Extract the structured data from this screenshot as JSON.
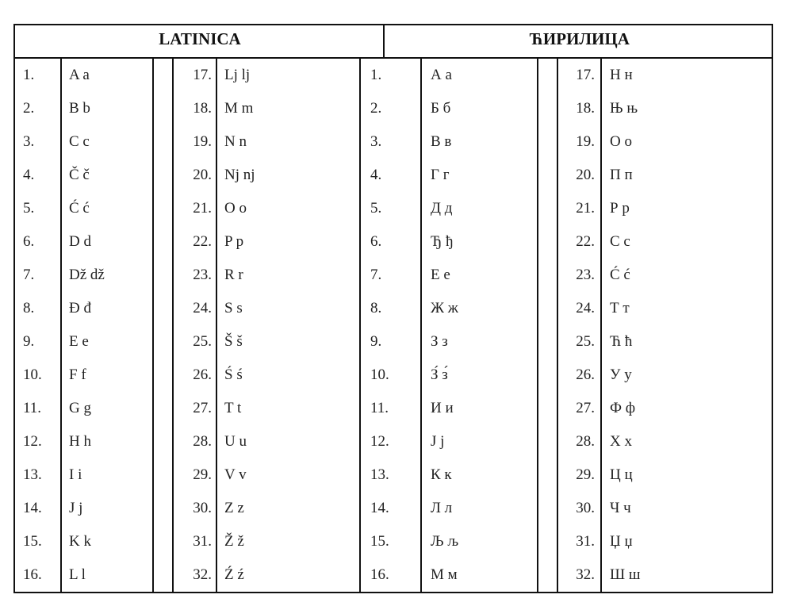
{
  "headers": {
    "latin": "LATINICA",
    "cyrillic": "ЋИРИЛИЦА"
  },
  "latin": [
    [
      "1.",
      "A a"
    ],
    [
      "2.",
      "B b"
    ],
    [
      "3.",
      "C c"
    ],
    [
      "4.",
      "Č č"
    ],
    [
      "5.",
      "Ć ć"
    ],
    [
      "6.",
      "D d"
    ],
    [
      "7.",
      "Dž dž"
    ],
    [
      "8.",
      "Đ đ"
    ],
    [
      "9.",
      "E e"
    ],
    [
      "10.",
      "F f"
    ],
    [
      "11.",
      "G g"
    ],
    [
      "12.",
      "H h"
    ],
    [
      "13.",
      "I i"
    ],
    [
      "14.",
      "J j"
    ],
    [
      "15.",
      "K k"
    ],
    [
      "16.",
      "L l"
    ],
    [
      "17.",
      "Lj lj"
    ],
    [
      "18.",
      "M m"
    ],
    [
      "19.",
      "N n"
    ],
    [
      "20.",
      "Nj nj"
    ],
    [
      "21.",
      "O o"
    ],
    [
      "22.",
      "P p"
    ],
    [
      "23.",
      "R r"
    ],
    [
      "24.",
      "S s"
    ],
    [
      "25.",
      "Š š"
    ],
    [
      "26.",
      "Ś ś"
    ],
    [
      "27.",
      "T t"
    ],
    [
      "28.",
      "U u"
    ],
    [
      "29.",
      "V v"
    ],
    [
      "30.",
      "Z z"
    ],
    [
      "31.",
      "Ž ž"
    ],
    [
      "32.",
      "Ź ź"
    ]
  ],
  "cyrillic": [
    [
      "1.",
      "А а"
    ],
    [
      "2.",
      "Б б"
    ],
    [
      "3.",
      "В в"
    ],
    [
      "4.",
      "Г г"
    ],
    [
      "5.",
      "Д д"
    ],
    [
      "6.",
      "Ђ ђ"
    ],
    [
      "7.",
      "Е е"
    ],
    [
      "8.",
      "Ж ж"
    ],
    [
      "9.",
      "З з"
    ],
    [
      "10.",
      "З́  з́"
    ],
    [
      "11.",
      "И и"
    ],
    [
      "12.",
      "Ј ј"
    ],
    [
      "13.",
      "К к"
    ],
    [
      "14.",
      "Л л"
    ],
    [
      "15.",
      "Љ љ"
    ],
    [
      "16.",
      "М м"
    ],
    [
      "17.",
      "Н н"
    ],
    [
      "18.",
      "Њ њ"
    ],
    [
      "19.",
      "О о"
    ],
    [
      "20.",
      "П п"
    ],
    [
      "21.",
      "Р р"
    ],
    [
      "22.",
      "С с"
    ],
    [
      "23.",
      "Ć ć"
    ],
    [
      "24.",
      "Т т"
    ],
    [
      "25.",
      "Ћ ћ"
    ],
    [
      "26.",
      "У у"
    ],
    [
      "27.",
      "Ф ф"
    ],
    [
      "28.",
      "Х х"
    ],
    [
      "29.",
      "Ц ц"
    ],
    [
      "30.",
      "Ч ч"
    ],
    [
      "31.",
      "Џ џ"
    ],
    [
      "32.",
      "Ш ш"
    ]
  ]
}
